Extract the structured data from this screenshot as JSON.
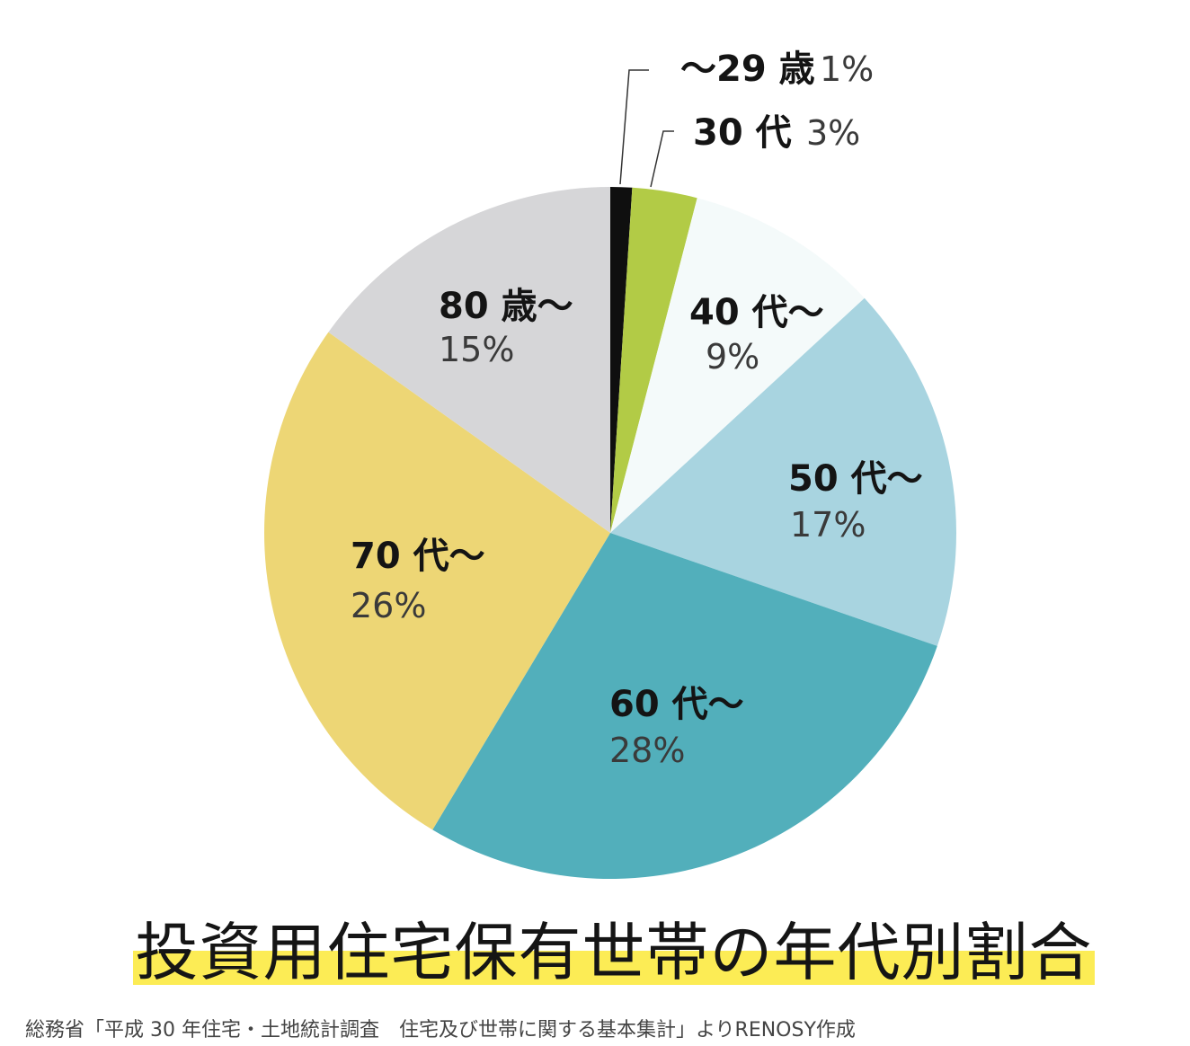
{
  "chart_data": {
    "type": "pie",
    "title": "投資用住宅保有世帯の年代別割合",
    "source": "総務省「平成 30 年住宅・土地統計調査　住宅及び世帯に関する基本集計」よりRENOSY作成",
    "unit": "%",
    "slices": [
      {
        "label": "〜29 歳",
        "value": 1,
        "display": "1%",
        "color": "#0f0f0f"
      },
      {
        "label": "30 代",
        "value": 3,
        "display": "3%",
        "color": "#b2cb46"
      },
      {
        "label": "40 代〜",
        "value": 9,
        "display": "9%",
        "color": "#f4fafa"
      },
      {
        "label": "50 代〜",
        "value": 17,
        "display": "17%",
        "color": "#a8d4e0"
      },
      {
        "label": "60 代〜",
        "value": 28,
        "display": "28%",
        "color": "#52afbb"
      },
      {
        "label": "70 代〜",
        "value": 26,
        "display": "26%",
        "color": "#edd675"
      },
      {
        "label": "80 歳〜",
        "value": 15,
        "display": "15%",
        "color": "#d6d6d8"
      }
    ],
    "start": "12 o'clock",
    "direction": "clockwise",
    "outside_labels": [
      "〜29 歳",
      "30 代"
    ]
  }
}
